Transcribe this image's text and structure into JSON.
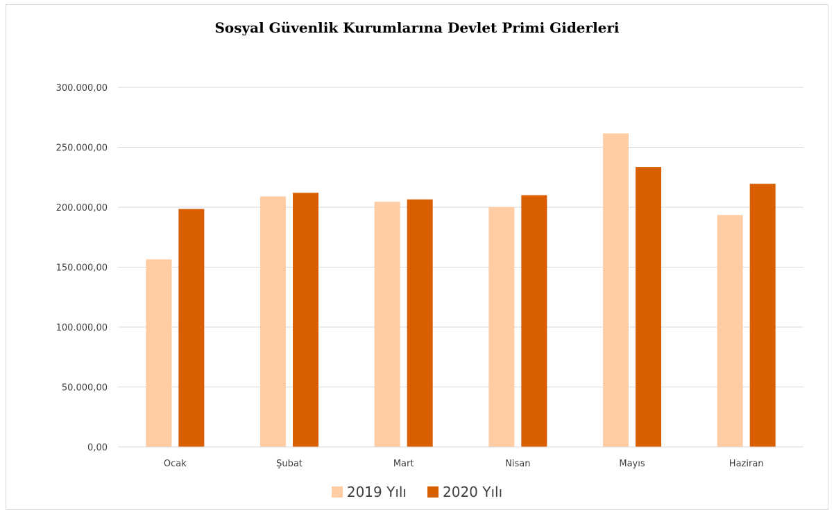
{
  "chart_data": {
    "type": "bar",
    "title": "Sosyal Güvenlik Kurumlarına Devlet Primi Giderleri",
    "categories": [
      "Ocak",
      "Şubat",
      "Mart",
      "Nisan",
      "Mayıs",
      "Haziran"
    ],
    "series": [
      {
        "name": "2019 Yılı",
        "color": "#FFCCA3",
        "values": [
          156500,
          209000,
          204500,
          200000,
          261500,
          193500
        ]
      },
      {
        "name": "2020 Yılı",
        "color": "#D95F02",
        "values": [
          198500,
          212000,
          206500,
          210000,
          233500,
          219500
        ]
      }
    ],
    "ylim": [
      0,
      300000
    ],
    "yticks": [
      0,
      50000,
      100000,
      150000,
      200000,
      250000,
      300000
    ],
    "ytick_labels": [
      "0,00",
      "50.000,00",
      "100.000,00",
      "150.000,00",
      "200.000,00",
      "250.000,00",
      "300.000,00"
    ],
    "grid": true,
    "legend_position": "bottom",
    "gridline_color": "#d9d9d9"
  }
}
